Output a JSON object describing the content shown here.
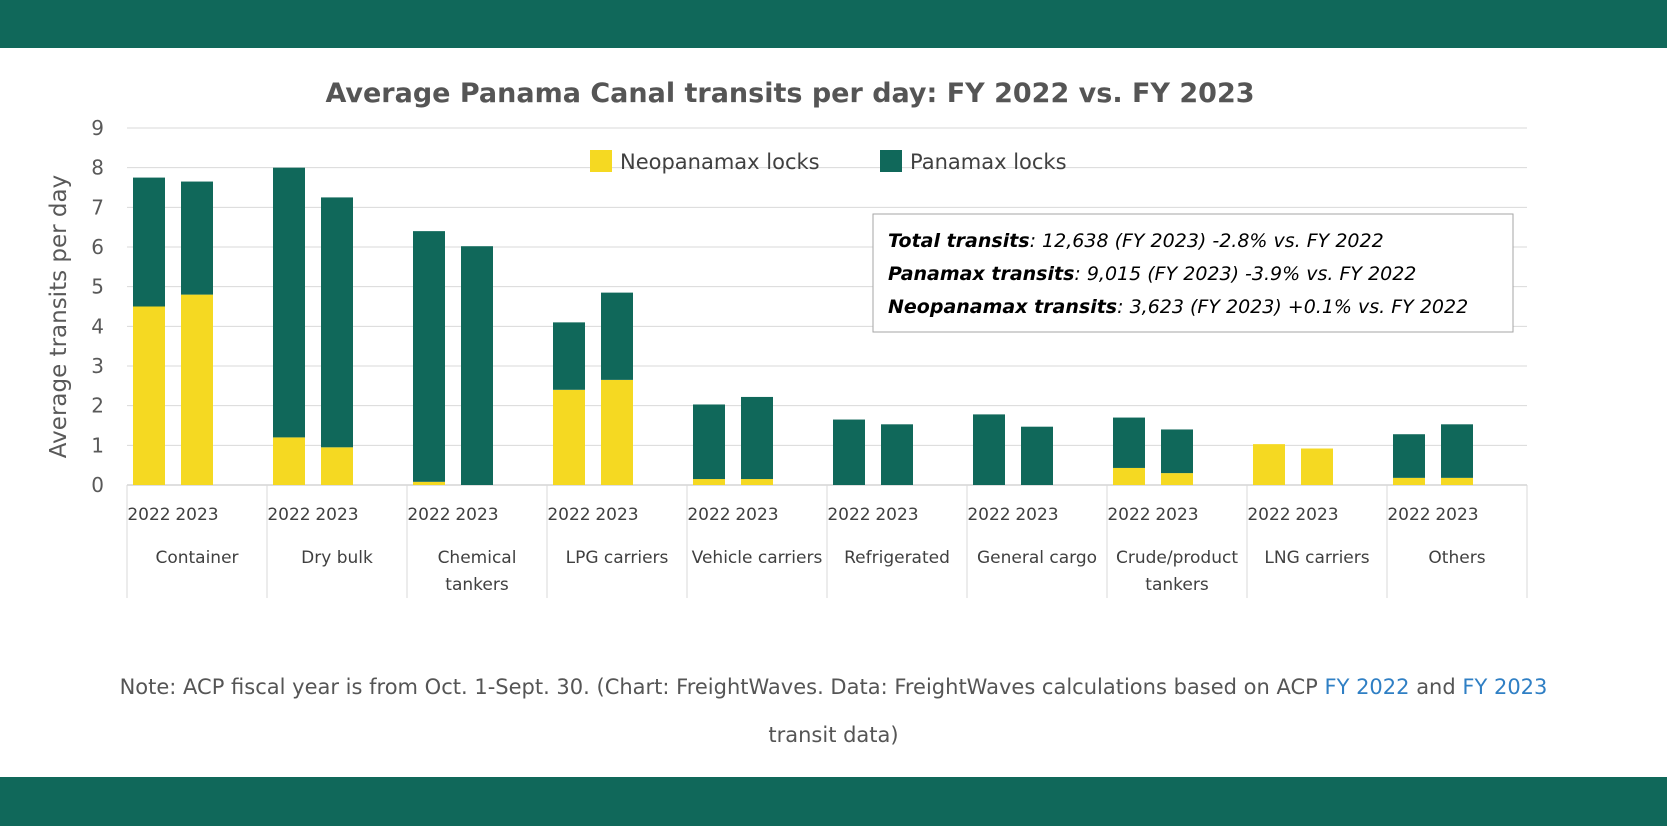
{
  "chart_data": {
    "type": "bar",
    "stacked": true,
    "title": "Average Panama Canal transits per day: FY 2022 vs. FY 2023",
    "ylabel": "Average transits per day",
    "xlabel": "",
    "ylim": [
      0,
      9
    ],
    "yticks": [
      0,
      1,
      2,
      3,
      4,
      5,
      6,
      7,
      8,
      9
    ],
    "grid": true,
    "legend_position": "top-center",
    "groups": [
      {
        "name": "Container",
        "lines": [
          "Container"
        ],
        "years": [
          "2022",
          "2023"
        ],
        "neopanamax": [
          4.5,
          4.8
        ],
        "panamax": [
          3.25,
          2.85
        ]
      },
      {
        "name": "Dry bulk",
        "lines": [
          "Dry bulk"
        ],
        "years": [
          "2022",
          "2023"
        ],
        "neopanamax": [
          1.2,
          0.95
        ],
        "panamax": [
          6.8,
          6.3
        ]
      },
      {
        "name": "Chemical tankers",
        "lines": [
          "Chemical",
          "tankers"
        ],
        "years": [
          "2022",
          "2023"
        ],
        "neopanamax": [
          0.08,
          0
        ],
        "panamax": [
          6.32,
          6.02
        ]
      },
      {
        "name": "LPG carriers",
        "lines": [
          "LPG carriers"
        ],
        "years": [
          "2022",
          "2023"
        ],
        "neopanamax": [
          2.4,
          2.65
        ],
        "panamax": [
          1.7,
          2.2
        ]
      },
      {
        "name": "Vehicle carriers",
        "lines": [
          "Vehicle carriers"
        ],
        "years": [
          "2022",
          "2023"
        ],
        "neopanamax": [
          0.15,
          0.15
        ],
        "panamax": [
          1.88,
          2.07
        ]
      },
      {
        "name": "Refrigerated",
        "lines": [
          "Refrigerated"
        ],
        "years": [
          "2022",
          "2023"
        ],
        "neopanamax": [
          0,
          0
        ],
        "panamax": [
          1.65,
          1.53
        ]
      },
      {
        "name": "General cargo",
        "lines": [
          "General cargo"
        ],
        "years": [
          "2022",
          "2023"
        ],
        "neopanamax": [
          0,
          0
        ],
        "panamax": [
          1.78,
          1.47
        ]
      },
      {
        "name": "Crude/product tankers",
        "lines": [
          "Crude/product",
          "tankers"
        ],
        "years": [
          "2022",
          "2023"
        ],
        "neopanamax": [
          0.43,
          0.3
        ],
        "panamax": [
          1.27,
          1.1
        ]
      },
      {
        "name": "LNG carriers",
        "lines": [
          "LNG carriers"
        ],
        "years": [
          "2022",
          "2023"
        ],
        "neopanamax": [
          1.03,
          0.92
        ],
        "panamax": [
          0,
          0
        ]
      },
      {
        "name": "Others",
        "lines": [
          "Others"
        ],
        "years": [
          "2022",
          "2023"
        ],
        "neopanamax": [
          0.18,
          0.18
        ],
        "panamax": [
          1.1,
          1.35
        ]
      }
    ],
    "series": [
      {
        "name": "Neopanamax locks",
        "key": "neopanamax",
        "color": "#f5d922"
      },
      {
        "name": "Panamax locks",
        "key": "panamax",
        "color": "#10685a"
      }
    ],
    "annotation": [
      {
        "label": "Total transits",
        "text": ": 12,638 (FY 2023) -2.8% vs. FY 2022"
      },
      {
        "label": "Panamax transits",
        "text": ": 9,015 (FY 2023) -3.9% vs. FY 2022"
      },
      {
        "label": "Neopanamax transits",
        "text": ": 3,623 (FY 2023) +0.1% vs. FY 2022"
      }
    ]
  },
  "note": {
    "prefix": "Note: ACP fiscal year is from Oct. 1-Sept. 30. (Chart: FreightWaves. Data: FreightWaves calculations based on ACP ",
    "link1": "FY 2022",
    "and": " and ",
    "link2": "FY 2023",
    "line2": "transit data)"
  },
  "colors": {
    "band": "#10685a",
    "neopanamax": "#f5d922",
    "panamax": "#10685a",
    "link": "#2f7fc4"
  }
}
